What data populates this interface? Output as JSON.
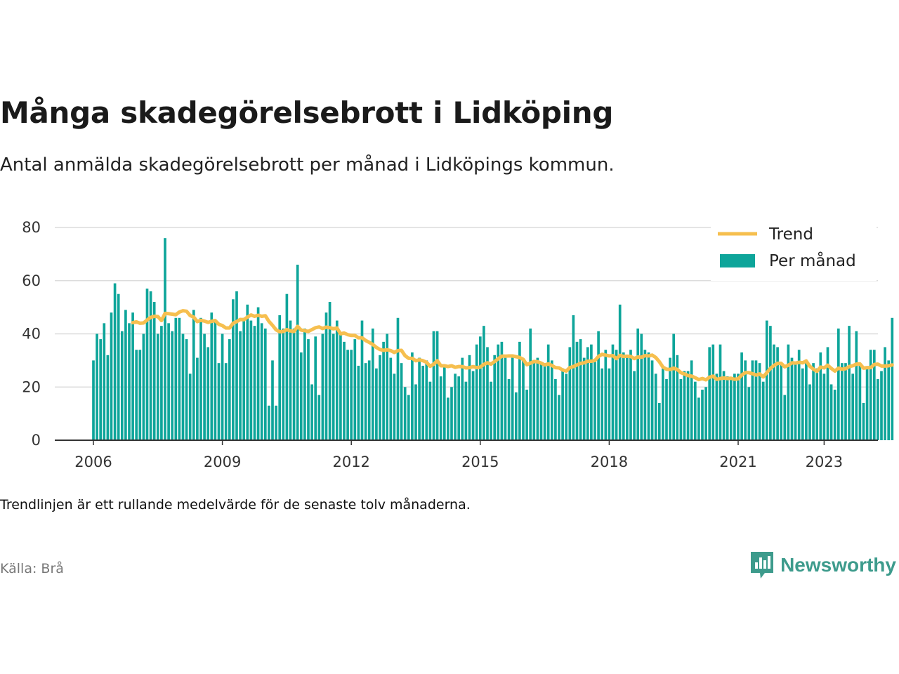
{
  "title": "Många skadegörelsebrott i Lidköping",
  "subtitle": "Antal anmälda skadegörelsebrott per månad i Lidköpings kommun.",
  "note": "Trendlinjen är ett rullande medelvärde för de senaste tolv månaderna.",
  "source": "Källa: Brå",
  "brand": "Newsworthy",
  "colors": {
    "bar": "#0ea59a",
    "trend": "#f6bf4f",
    "brand": "#3d9b8c",
    "grid": "#dcdcdc",
    "axis": "#333333"
  },
  "chart_data": {
    "type": "bar",
    "start": "2006-01",
    "xlim": [
      2006,
      2023.4
    ],
    "ylim": [
      0,
      80
    ],
    "yticks": [
      0,
      20,
      40,
      60,
      80
    ],
    "xticks": [
      2006,
      2009,
      2012,
      2015,
      2018,
      2021,
      2023
    ],
    "legend_position": "top-right",
    "grid": true,
    "series": [
      {
        "name": "Per månad",
        "type": "bar",
        "values": [
          30,
          40,
          38,
          44,
          32,
          48,
          59,
          55,
          41,
          49,
          44,
          48,
          34,
          34,
          40,
          57,
          56,
          52,
          40,
          43,
          76,
          44,
          41,
          46,
          46,
          40,
          38,
          25,
          49,
          31,
          46,
          40,
          35,
          48,
          45,
          29,
          40,
          29,
          38,
          53,
          56,
          41,
          46,
          51,
          45,
          43,
          50,
          44,
          42,
          13,
          30,
          13,
          47,
          42,
          55,
          45,
          42,
          66,
          33,
          42,
          38,
          21,
          39,
          17,
          40,
          48,
          52,
          40,
          45,
          40,
          37,
          34,
          34,
          38,
          28,
          45,
          29,
          30,
          42,
          27,
          32,
          37,
          40,
          31,
          25,
          46,
          29,
          20,
          17,
          33,
          21,
          31,
          28,
          30,
          22,
          41,
          41,
          24,
          28,
          16,
          20,
          25,
          24,
          31,
          22,
          32,
          26,
          36,
          39,
          43,
          35,
          22,
          32,
          36,
          37,
          31,
          23,
          31,
          18,
          37,
          30,
          19,
          42,
          30,
          31,
          29,
          28,
          36,
          30,
          23,
          17,
          27,
          25,
          35,
          47,
          37,
          38,
          31,
          35,
          36,
          30,
          41,
          27,
          34,
          27,
          36,
          34,
          51,
          33,
          32,
          34,
          26,
          42,
          40,
          34,
          33,
          30,
          25,
          14,
          27,
          23,
          31,
          40,
          32,
          23,
          26,
          26,
          30,
          22,
          16,
          19,
          20,
          35,
          36,
          25,
          36,
          26,
          24,
          23,
          25,
          25,
          33,
          30,
          20,
          30,
          30,
          29,
          22,
          45,
          43,
          36,
          35,
          29,
          17,
          36,
          31,
          29,
          34,
          27,
          30,
          21,
          29,
          27,
          33,
          25,
          35,
          21,
          19,
          42,
          29,
          29,
          43,
          25,
          41,
          28,
          14,
          27,
          34,
          34,
          23,
          26,
          35,
          30,
          46
        ]
      },
      {
        "name": "Trend",
        "type": "line",
        "values": [
          null,
          null,
          null,
          null,
          null,
          null,
          null,
          null,
          null,
          null,
          null,
          44.2,
          44.5,
          44.0,
          44.1,
          45.2,
          46.2,
          46.6,
          46.5,
          45.0,
          47.7,
          47.6,
          47.4,
          47.2,
          48.2,
          48.7,
          48.5,
          46.9,
          46.3,
          44.6,
          45.1,
          44.8,
          44.3,
          44.7,
          45.0,
          43.6,
          43.1,
          42.2,
          42.2,
          44.0,
          44.6,
          45.4,
          45.3,
          46.3,
          47.1,
          46.6,
          47.0,
          46.6,
          46.8,
          44.7,
          43.2,
          41.5,
          40.8,
          40.9,
          41.6,
          41.1,
          40.9,
          42.8,
          41.4,
          41.2,
          40.9,
          41.6,
          42.3,
          42.6,
          42.0,
          42.5,
          42.3,
          41.9,
          42.2,
          40.0,
          40.3,
          39.7,
          39.4,
          39.4,
          38.5,
          38.5,
          37.5,
          36.8,
          36.0,
          34.9,
          34.1,
          33.8,
          34.0,
          33.7,
          33.0,
          33.7,
          33.8,
          31.8,
          30.8,
          30.8,
          29.9,
          30.2,
          29.9,
          29.3,
          27.8,
          28.6,
          29.9,
          28.0,
          28.0,
          27.7,
          28.0,
          27.4,
          27.7,
          27.7,
          27.2,
          27.3,
          27.7,
          27.3,
          27.5,
          28.5,
          29.1,
          28.6,
          29.6,
          30.6,
          31.6,
          31.6,
          31.7,
          31.7,
          31.4,
          31.1,
          30.4,
          28.4,
          29.0,
          29.6,
          29.5,
          29.0,
          28.3,
          28.7,
          28.1,
          27.3,
          27.2,
          26.4,
          26.0,
          27.3,
          27.7,
          28.3,
          28.9,
          29.1,
          29.7,
          29.7,
          30.0,
          31.5,
          32.3,
          32.0,
          31.7,
          31.8,
          30.7,
          31.9,
          31.5,
          31.6,
          31.5,
          30.7,
          31.3,
          31.2,
          31.8,
          31.7,
          32.0,
          31.1,
          29.5,
          27.5,
          26.7,
          26.6,
          27.1,
          26.6,
          25.4,
          24.9,
          24.3,
          24.1,
          23.5,
          22.8,
          23.2,
          22.7,
          23.7,
          24.1,
          22.9,
          23.2,
          23.4,
          23.2,
          23.3,
          22.9,
          23.1,
          24.5,
          25.4,
          25.4,
          25.0,
          24.5,
          24.9,
          23.8,
          25.4,
          27.0,
          28.1,
          28.9,
          28.9,
          27.6,
          28.2,
          29.1,
          29.0,
          29.3,
          29.1,
          29.8,
          27.8,
          26.7,
          25.9,
          27.5,
          27.2,
          28.2,
          27.0,
          26.0,
          27.1,
          26.7,
          26.9,
          27.7,
          28.0,
          28.6,
          28.7,
          27.1,
          27.3,
          27.3,
          28.5,
          28.6,
          27.9,
          27.9,
          28.0,
          28.3
        ]
      }
    ]
  }
}
